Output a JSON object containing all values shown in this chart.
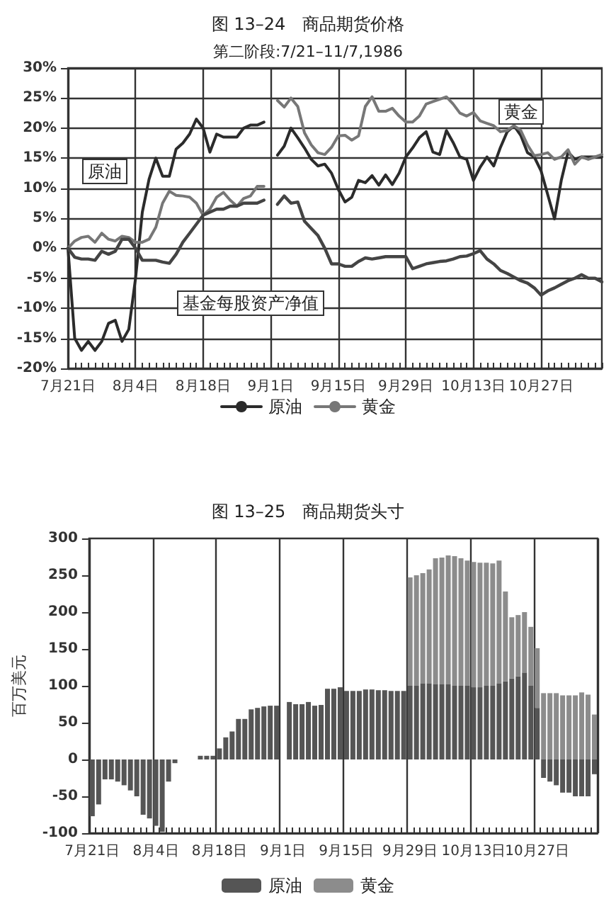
{
  "chart_data": [
    {
      "type": "line",
      "title": "图 13–24　商品期货价格",
      "subtitle": "第二阶段:7/21–11/7,1986",
      "categories": [
        "7月21日",
        null,
        null,
        null,
        null,
        null,
        null,
        null,
        null,
        null,
        "8月4日",
        null,
        null,
        null,
        null,
        null,
        null,
        null,
        null,
        null,
        "8月18日",
        null,
        null,
        null,
        null,
        null,
        null,
        null,
        null,
        null,
        "9月1日",
        null,
        null,
        null,
        null,
        null,
        null,
        null,
        null,
        null,
        "9月15日",
        null,
        null,
        null,
        null,
        null,
        null,
        null,
        null,
        null,
        "9月29日",
        null,
        null,
        null,
        null,
        null,
        null,
        null,
        null,
        null,
        "10月13日",
        null,
        null,
        null,
        null,
        null,
        null,
        null,
        null,
        null,
        "10月27日",
        null,
        null,
        null,
        null,
        null,
        null,
        null,
        null,
        null
      ],
      "series": [
        {
          "name": "原油",
          "color": "#2b2b2b",
          "values": [
            0,
            -15,
            -17,
            -15.5,
            -17,
            -15.5,
            -12.5,
            -12,
            -15.5,
            -13.5,
            -5,
            6,
            11.5,
            15,
            12,
            12,
            16.5,
            17.5,
            19,
            21.5,
            20,
            16,
            19,
            18.5,
            18.5,
            18.5,
            20,
            20.5,
            20.5,
            21,
            null,
            15.5,
            17,
            20,
            18.4,
            16.7,
            14.8,
            13.7,
            14,
            12.5,
            9.8,
            7.7,
            8.5,
            11.3,
            10.9,
            12.1,
            10.5,
            12.2,
            10.6,
            12.5,
            15.2,
            16.7,
            18.4,
            19.4,
            16,
            15.6,
            19.6,
            17.6,
            15.2,
            14.8,
            11.3,
            13.5,
            15.2,
            13.7,
            16.8,
            19.4,
            20.4,
            18.8,
            15.9,
            15.2,
            12.9,
            8.9,
            4.9,
            11.3,
            16,
            14.8,
            15.2,
            15.2,
            15.2,
            15.2
          ]
        },
        {
          "name": "黄金",
          "color": "#777777",
          "values": [
            0,
            1.2,
            1.8,
            2,
            1,
            2.5,
            1.5,
            1.2,
            2,
            1.8,
            1,
            1,
            1.5,
            3.5,
            7.5,
            9.5,
            8.8,
            8.7,
            8.5,
            7.5,
            5.5,
            6.5,
            8.5,
            9.3,
            8,
            7,
            8.3,
            8.7,
            10.3,
            10.3,
            null,
            24.6,
            23.5,
            25,
            23.6,
            19.2,
            17.2,
            15.9,
            15.6,
            16.8,
            18.7,
            18.8,
            18,
            18.7,
            23.6,
            25.2,
            22.8,
            22.8,
            23.3,
            22,
            21,
            21,
            22,
            24,
            24.4,
            24.8,
            25.2,
            24,
            22.5,
            22,
            22.6,
            21.2,
            20.8,
            20.4,
            19.4,
            19.6,
            20.4,
            19.6,
            17.2,
            15.4,
            15.6,
            15.9,
            14.8,
            15.2,
            16.4,
            14,
            15.2,
            14.8,
            15.2,
            15.6
          ]
        },
        {
          "color": "#444444",
          "values": [
            0,
            -1.5,
            -1.8,
            -1.8,
            -2,
            -0.5,
            -1,
            -0.5,
            1.5,
            1.5,
            0,
            -2,
            -2,
            -2,
            -2.3,
            -2.5,
            -1,
            1,
            2.5,
            4,
            5.5,
            6,
            6.5,
            6.5,
            7,
            7,
            7.5,
            7.5,
            7.5,
            8,
            null,
            7.3,
            8.7,
            7.5,
            7.7,
            4.5,
            3.3,
            2.1,
            0,
            -2.6,
            -2.6,
            -3,
            -3,
            -2.2,
            -1.6,
            -1.8,
            -1.6,
            -1.4,
            -1.4,
            -1.4,
            -1.4,
            -3.4,
            -3,
            -2.6,
            -2.4,
            -2.2,
            -2.1,
            -1.8,
            -1.4,
            -1.3,
            -0.9,
            -0.4,
            -1.8,
            -2.6,
            -3.7,
            -4.2,
            -4.8,
            -5.4,
            -5.8,
            -6.6,
            -7.8,
            -7.1,
            -6.6,
            -6,
            -5.4,
            -5,
            -4.4,
            -5,
            -5,
            -5.6
          ]
        }
      ],
      "ylim": [
        -20,
        30
      ],
      "yticks": [
        {
          "value": -20,
          "label": "-20%"
        },
        {
          "value": -15,
          "label": "-15%"
        },
        {
          "value": -10,
          "label": "-10%"
        },
        {
          "value": -5,
          "label": "-5%"
        },
        {
          "value": 0,
          "label": "0%"
        },
        {
          "value": 5,
          "label": "5%"
        },
        {
          "value": 10,
          "label": "10%"
        },
        {
          "value": 15,
          "label": "15%"
        },
        {
          "value": 20,
          "label": "20%"
        },
        {
          "value": 25,
          "label": "25%"
        },
        {
          "value": 30,
          "label": "30%"
        }
      ],
      "annotations": [
        "原油",
        "黄金",
        "基金每股资产净值"
      ],
      "grid": true,
      "legend": "bottom"
    },
    {
      "type": "bar",
      "title": "图 13–25　商品期货头寸",
      "ylabel": "百万美元",
      "stacked": true,
      "categories": [
        "7月21日",
        null,
        null,
        null,
        null,
        null,
        null,
        null,
        null,
        null,
        "8月4日",
        null,
        null,
        null,
        null,
        null,
        null,
        null,
        null,
        null,
        "8月18日",
        null,
        null,
        null,
        null,
        null,
        null,
        null,
        null,
        null,
        "9月1日",
        null,
        null,
        null,
        null,
        null,
        null,
        null,
        null,
        null,
        "9月15日",
        null,
        null,
        null,
        null,
        null,
        null,
        null,
        null,
        null,
        "9月29日",
        null,
        null,
        null,
        null,
        null,
        null,
        null,
        null,
        null,
        "10月13日",
        null,
        null,
        null,
        null,
        null,
        null,
        null,
        null,
        null,
        "10月27日",
        null,
        null,
        null,
        null,
        null,
        null,
        null,
        null,
        null
      ],
      "series": [
        {
          "name": "原油",
          "color": "#555555",
          "values": [
            -77,
            -61,
            -27,
            -27,
            -30,
            -35,
            -42,
            -50,
            -75,
            -80,
            -90,
            -98,
            -30,
            -5,
            null,
            null,
            null,
            5,
            5,
            5,
            15,
            30,
            38,
            55,
            55,
            68,
            70,
            72,
            73,
            73,
            null,
            78,
            75,
            75,
            78,
            73,
            74,
            96,
            96,
            98,
            93,
            93,
            93,
            95,
            95,
            94,
            94,
            93,
            93,
            93,
            100,
            100,
            103,
            103,
            102,
            102,
            102,
            100,
            100,
            100,
            98,
            98,
            100,
            100,
            103,
            106,
            110,
            113,
            118,
            100,
            70,
            -25,
            -30,
            -35,
            -45,
            -45,
            -50,
            -50,
            -50,
            -20
          ]
        },
        {
          "name": "黄金",
          "color": "#8c8c8c",
          "values": [
            null,
            null,
            null,
            null,
            null,
            null,
            null,
            null,
            null,
            null,
            null,
            null,
            null,
            null,
            null,
            null,
            null,
            null,
            null,
            null,
            null,
            null,
            null,
            null,
            null,
            null,
            null,
            null,
            null,
            null,
            null,
            null,
            null,
            null,
            null,
            null,
            null,
            null,
            null,
            null,
            null,
            null,
            null,
            null,
            null,
            null,
            null,
            null,
            null,
            null,
            147,
            150,
            150,
            155,
            171,
            172,
            175,
            176,
            173,
            170,
            170,
            169,
            167,
            166,
            167,
            122,
            83,
            83,
            82,
            80,
            81,
            90,
            90,
            90,
            87,
            87,
            87,
            91,
            88,
            61
          ]
        }
      ],
      "ylim": [
        -100,
        300
      ],
      "yticks": [
        -100,
        -50,
        0,
        50,
        100,
        150,
        200,
        250,
        300
      ],
      "grid": "x",
      "legend": "bottom"
    }
  ]
}
